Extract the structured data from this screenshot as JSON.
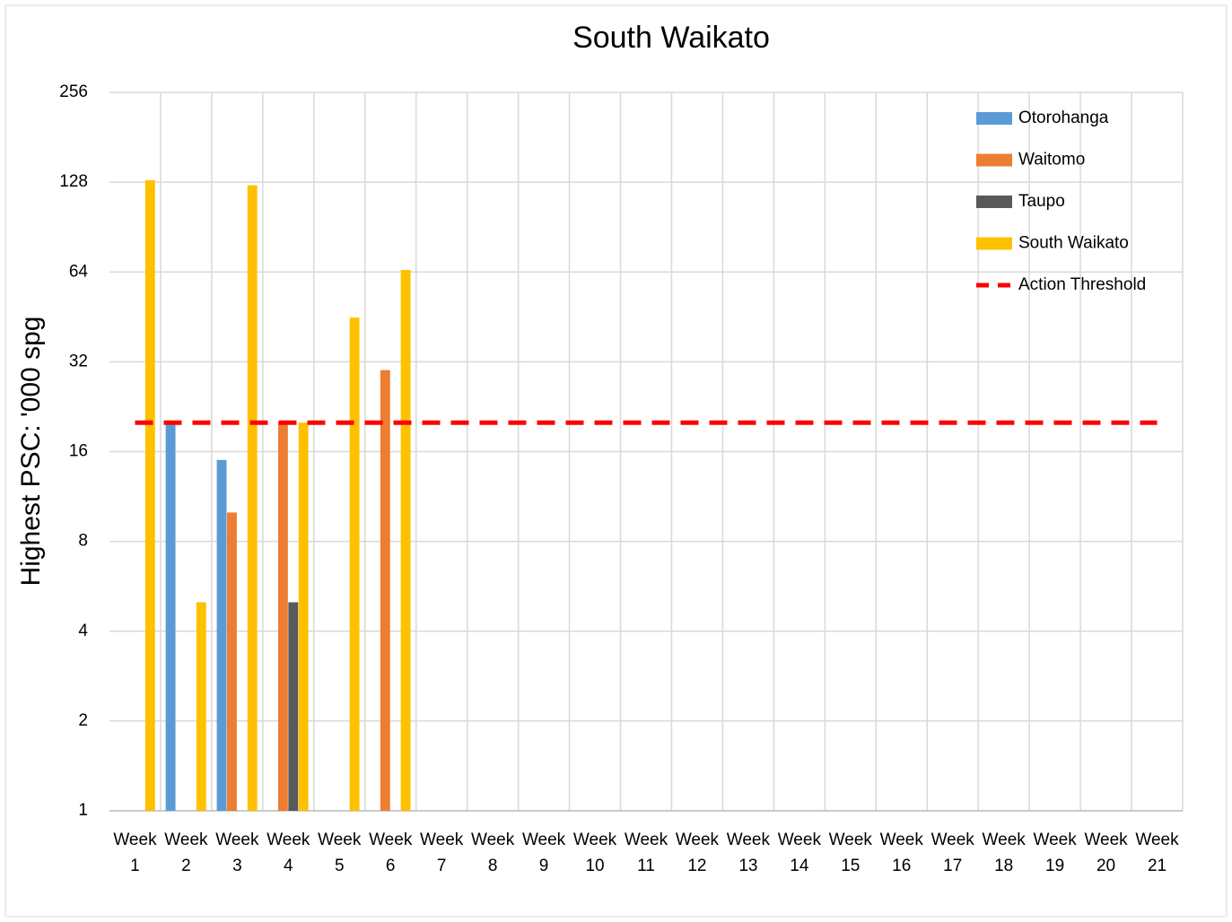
{
  "chart_data": {
    "type": "bar",
    "title": "South Waikato",
    "y_label": "Highest PSC: '000 spg",
    "categories": [
      "Week 1",
      "Week 2",
      "Week 3",
      "Week 4",
      "Week 5",
      "Week 6",
      "Week 7",
      "Week 8",
      "Week 9",
      "Week 10",
      "Week 11",
      "Week 12",
      "Week 13",
      "Week 14",
      "Week 15",
      "Week 16",
      "Week 17",
      "Week 18",
      "Week 19",
      "Week 20",
      "Week 21"
    ],
    "series": [
      {
        "name": "Otorohanga",
        "color": "#5b9bd5",
        "values": [
          null,
          20,
          15,
          null,
          null,
          null,
          null,
          null,
          null,
          null,
          null,
          null,
          null,
          null,
          null,
          null,
          null,
          null,
          null,
          null,
          null
        ]
      },
      {
        "name": "Waitomo",
        "color": "#ed7d31",
        "values": [
          null,
          null,
          10,
          20,
          null,
          30,
          null,
          null,
          null,
          null,
          null,
          null,
          null,
          null,
          null,
          null,
          null,
          null,
          null,
          null,
          null
        ]
      },
      {
        "name": "Taupo",
        "color": "#595959",
        "values": [
          null,
          null,
          null,
          5,
          null,
          null,
          null,
          null,
          null,
          null,
          null,
          null,
          null,
          null,
          null,
          null,
          null,
          null,
          null,
          null,
          null
        ]
      },
      {
        "name": "South Waikato",
        "color": "#ffc000",
        "values": [
          130,
          5,
          125,
          20,
          45,
          65,
          null,
          null,
          null,
          null,
          null,
          null,
          null,
          null,
          null,
          null,
          null,
          null,
          null,
          null,
          null
        ]
      },
      {
        "name": "Action Threshold",
        "color": "#ff0000",
        "type": "line",
        "dashed": true,
        "values": [
          20,
          20,
          20,
          20,
          20,
          20,
          20,
          20,
          20,
          20,
          20,
          20,
          20,
          20,
          20,
          20,
          20,
          20,
          20,
          20,
          20
        ]
      }
    ],
    "ylim": [
      1,
      256
    ],
    "yticks": [
      1,
      2,
      4,
      8,
      16,
      32,
      64,
      128,
      256
    ],
    "log_scale": true,
    "log_base": 2,
    "grid": true,
    "legend": "top-right"
  }
}
